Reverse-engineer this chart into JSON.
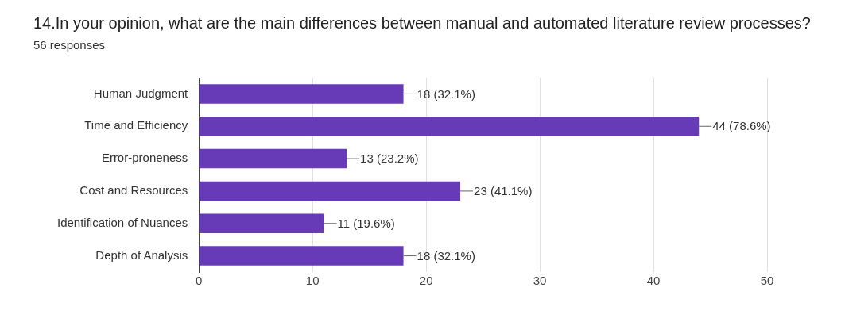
{
  "chart_data": {
    "type": "bar",
    "orientation": "horizontal",
    "title": "14.In your opinion, what are the main differences between manual and automated literature review processes?",
    "subtitle": "56 responses",
    "categories": [
      "Human Judgment",
      "Time and Efficiency",
      "Error-proneness",
      "Cost and Resources",
      "Identification of Nuances",
      "Depth of Analysis"
    ],
    "values": [
      18,
      44,
      13,
      23,
      11,
      18
    ],
    "value_labels": [
      "18 (32.1%)",
      "44 (78.6%)",
      "13 (23.2%)",
      "23 (41.1%)",
      "11 (19.6%)",
      "18 (32.1%)"
    ],
    "color": "#673ab7",
    "xlim": [
      0,
      50
    ],
    "xticks": [
      0,
      10,
      20,
      30,
      40,
      50
    ],
    "grid": "x",
    "legend": false
  }
}
